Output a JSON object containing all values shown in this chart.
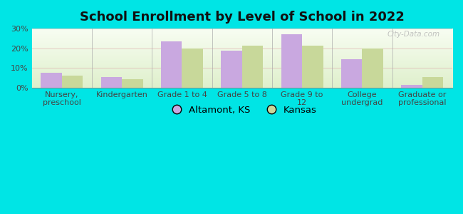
{
  "title": "School Enrollment by Level of School in 2022",
  "categories": [
    "Nursery,\npreschool",
    "Kindergarten",
    "Grade 1 to 4",
    "Grade 5 to 8",
    "Grade 9 to\n12",
    "College\nundergrad",
    "Graduate or\nprofessional"
  ],
  "altamont_values": [
    7.5,
    5.5,
    23.5,
    19.0,
    27.0,
    14.5,
    1.5
  ],
  "kansas_values": [
    6.0,
    4.5,
    20.0,
    21.5,
    21.5,
    20.0,
    5.5
  ],
  "altamont_color": "#c9a8e0",
  "kansas_color": "#c8d89a",
  "ylim": [
    0,
    30
  ],
  "yticks": [
    0,
    10,
    20,
    30
  ],
  "ytick_labels": [
    "0%",
    "10%",
    "20%",
    "30%"
  ],
  "background_color": "#00e5e5",
  "legend_altamont": "Altamont, KS",
  "legend_kansas": "Kansas",
  "watermark": "City-Data.com",
  "bar_width": 0.35,
  "title_fontsize": 13,
  "tick_fontsize": 8,
  "legend_fontsize": 9.5
}
